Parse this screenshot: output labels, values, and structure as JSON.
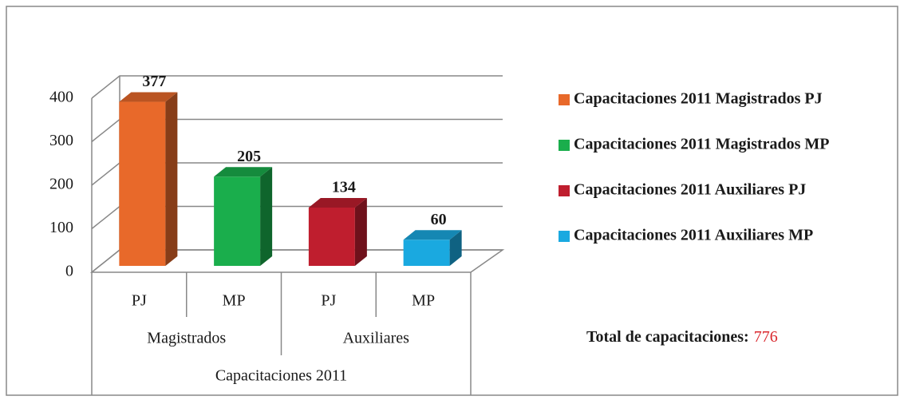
{
  "chart_data": {
    "type": "bar3d",
    "categories": [
      "PJ",
      "MP",
      "PJ",
      "MP"
    ],
    "groups": [
      "Magistrados",
      "Auxiliares"
    ],
    "group_axis_title": "Capacitaciones 2011",
    "series": [
      {
        "name": "Capacitaciones 2011 Magistrados PJ",
        "color": "#e8692a",
        "values": [
          377,
          null,
          null,
          null
        ]
      },
      {
        "name": "Capacitaciones 2011 Magistrados MP",
        "color": "#1aae4c",
        "values": [
          null,
          205,
          null,
          null
        ]
      },
      {
        "name": "Capacitaciones 2011 Auxiliares PJ",
        "color": "#bf1e2e",
        "values": [
          null,
          null,
          134,
          null
        ]
      },
      {
        "name": "Capacitaciones 2011 Auxiliares MP",
        "color": "#1aa9e0",
        "values": [
          null,
          null,
          null,
          60
        ]
      }
    ],
    "ylim": [
      0,
      400
    ],
    "yticks": [
      0,
      100,
      200,
      300,
      400
    ],
    "grid": true,
    "legend": "right",
    "total_label": "Total de capacitaciones:",
    "total_value": 776,
    "total_color": "#d9262c"
  }
}
